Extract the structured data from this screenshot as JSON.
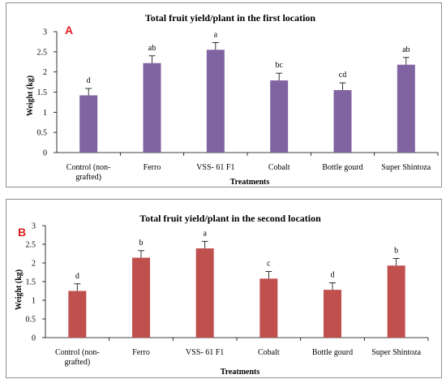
{
  "chart_data": [
    {
      "type": "bar",
      "panel_label": "A",
      "title": "Total fruit yield/plant in the first location",
      "xlabel": "Treatments",
      "ylabel": "Weight (kg)",
      "ylim": [
        0,
        3
      ],
      "yticks": [
        "0",
        "0.5",
        "1",
        "1.5",
        "2",
        "2.5",
        "3"
      ],
      "categories": [
        "Control (non-grafted)",
        "Ferro",
        "VSS- 61 F1",
        "Cobalt",
        "Bottle gourd",
        "Super Shintoza"
      ],
      "category_lines": [
        [
          "Control (non-",
          "grafted)"
        ],
        [
          "Ferro"
        ],
        [
          "VSS- 61 F1"
        ],
        [
          "Cobalt"
        ],
        [
          "Bottle gourd"
        ],
        [
          "Super Shintoza"
        ]
      ],
      "values": [
        1.42,
        2.22,
        2.55,
        1.79,
        1.55,
        2.18
      ],
      "errors": [
        0.17,
        0.18,
        0.18,
        0.18,
        0.18,
        0.18
      ],
      "significance": [
        "d",
        "ab",
        "a",
        "bc",
        "cd",
        "ab"
      ],
      "bar_color": "#8064a2",
      "grid": false
    },
    {
      "type": "bar",
      "panel_label": "B",
      "title": "Total fruit yield/plant in the second location",
      "xlabel": "Treatments",
      "ylabel": "Weight (kg)",
      "ylim": [
        0,
        3
      ],
      "yticks": [
        "0",
        "0.5",
        "1",
        "1.5",
        "2",
        "2.5",
        "3"
      ],
      "categories": [
        "Control (non-grafted)",
        "Ferro",
        "VSS- 61 F1",
        "Cobalt",
        "Bottle gourd",
        "Super Shintoza"
      ],
      "category_lines": [
        [
          "Control (non-",
          "grafted)"
        ],
        [
          "Ferro"
        ],
        [
          "VSS- 61 F1"
        ],
        [
          "Cobalt"
        ],
        [
          "Bottle gourd"
        ],
        [
          "Super Shintoza"
        ]
      ],
      "values": [
        1.25,
        2.14,
        2.39,
        1.58,
        1.28,
        1.93
      ],
      "errors": [
        0.19,
        0.19,
        0.19,
        0.19,
        0.19,
        0.19
      ],
      "significance": [
        "d",
        "b",
        "a",
        "c",
        "d",
        "b"
      ],
      "bar_color": "#c0504d",
      "grid": false
    }
  ]
}
